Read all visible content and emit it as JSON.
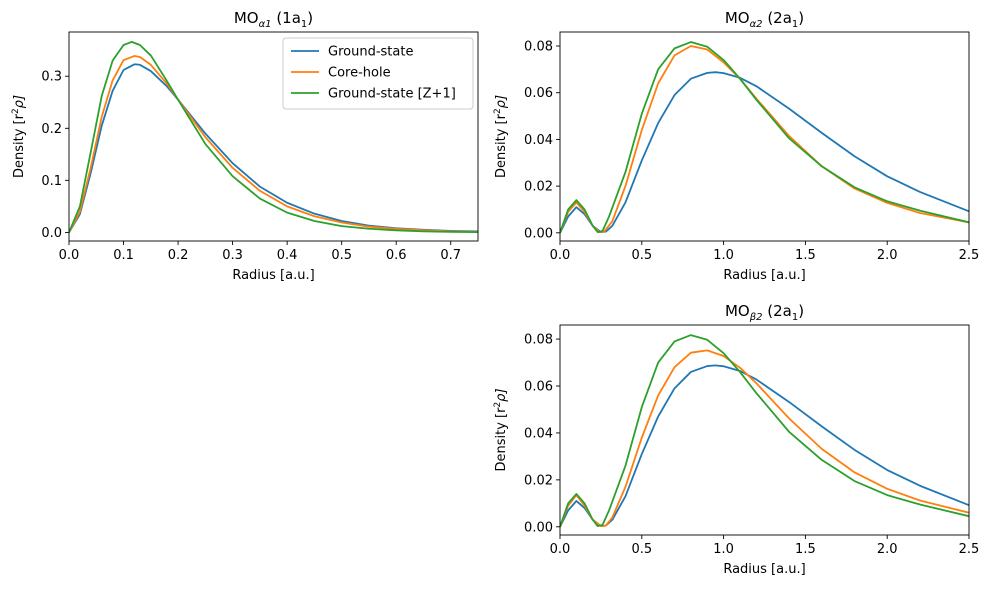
{
  "chart_data": [
    {
      "type": "line",
      "title_main": "MO",
      "title_sub": "α1",
      "title_suffix": " (1a",
      "title_suffix_sub": "1",
      "title_end": ")",
      "xlabel": "Radius [a.u.]",
      "ylabel_main": "Density [r",
      "ylabel_sup": "2",
      "ylabel_end": "ρ]",
      "xlim": [
        0,
        0.75
      ],
      "ylim": [
        -0.0165,
        0.385
      ],
      "xticks": [
        0.0,
        0.1,
        0.2,
        0.3,
        0.4,
        0.5,
        0.6,
        0.7
      ],
      "xtick_labels": [
        "0.0",
        "0.1",
        "0.2",
        "0.3",
        "0.4",
        "0.5",
        "0.6",
        "0.7"
      ],
      "yticks": [
        0.0,
        0.1,
        0.2,
        0.3
      ],
      "ytick_labels": [
        "0.0",
        "0.1",
        "0.2",
        "0.3"
      ],
      "legend": "top-right",
      "series": [
        {
          "name": "Ground-state",
          "color": "#1f77b4",
          "x": [
            0,
            0.02,
            0.04,
            0.06,
            0.08,
            0.1,
            0.12,
            0.13,
            0.15,
            0.18,
            0.2,
            0.25,
            0.3,
            0.35,
            0.4,
            0.45,
            0.5,
            0.55,
            0.6,
            0.65,
            0.7,
            0.75
          ],
          "values": [
            0,
            0.035,
            0.115,
            0.205,
            0.272,
            0.312,
            0.323,
            0.322,
            0.31,
            0.28,
            0.255,
            0.19,
            0.133,
            0.088,
            0.057,
            0.036,
            0.022,
            0.013,
            0.008,
            0.005,
            0.003,
            0.002
          ]
        },
        {
          "name": "Core-hole",
          "color": "#ff7f0e",
          "x": [
            0,
            0.02,
            0.04,
            0.06,
            0.08,
            0.1,
            0.12,
            0.13,
            0.15,
            0.18,
            0.2,
            0.25,
            0.3,
            0.35,
            0.4,
            0.45,
            0.5,
            0.55,
            0.6,
            0.65,
            0.7,
            0.75
          ],
          "values": [
            0,
            0.04,
            0.125,
            0.222,
            0.292,
            0.331,
            0.339,
            0.337,
            0.322,
            0.285,
            0.255,
            0.183,
            0.124,
            0.08,
            0.05,
            0.031,
            0.019,
            0.011,
            0.007,
            0.004,
            0.002,
            0.001
          ]
        },
        {
          "name": "Ground-state [Z+1]",
          "color": "#2ca02c",
          "x": [
            0,
            0.02,
            0.04,
            0.06,
            0.08,
            0.1,
            0.115,
            0.13,
            0.15,
            0.18,
            0.2,
            0.25,
            0.3,
            0.35,
            0.4,
            0.45,
            0.5,
            0.55,
            0.6,
            0.65,
            0.7,
            0.75
          ],
          "values": [
            0,
            0.05,
            0.155,
            0.262,
            0.33,
            0.36,
            0.366,
            0.36,
            0.34,
            0.29,
            0.255,
            0.17,
            0.108,
            0.065,
            0.038,
            0.022,
            0.012,
            0.007,
            0.004,
            0.002,
            0.001,
            0.0005
          ]
        }
      ]
    },
    {
      "type": "line",
      "title_main": "MO",
      "title_sub": "α2",
      "title_suffix": " (2a",
      "title_suffix_sub": "1",
      "title_end": ")",
      "xlabel": "Radius [a.u.]",
      "ylabel_main": "Density [r",
      "ylabel_sup": "2",
      "ylabel_end": "ρ]",
      "xlim": [
        0,
        2.5
      ],
      "ylim": [
        -0.0035,
        0.086
      ],
      "xticks": [
        0.0,
        0.5,
        1.0,
        1.5,
        2.0,
        2.5
      ],
      "xtick_labels": [
        "0.0",
        "0.5",
        "1.0",
        "1.5",
        "2.0",
        "2.5"
      ],
      "yticks": [
        0.0,
        0.02,
        0.04,
        0.06,
        0.08
      ],
      "ytick_labels": [
        "0.00",
        "0.02",
        "0.04",
        "0.06",
        "0.08"
      ],
      "legend": "none",
      "series": [
        {
          "name": "Ground-state",
          "color": "#1f77b4",
          "x": [
            0,
            0.05,
            0.1,
            0.15,
            0.2,
            0.25,
            0.28,
            0.32,
            0.4,
            0.5,
            0.6,
            0.7,
            0.8,
            0.9,
            0.95,
            1.0,
            1.1,
            1.2,
            1.4,
            1.6,
            1.8,
            2.0,
            2.2,
            2.5
          ],
          "values": [
            0,
            0.007,
            0.011,
            0.008,
            0.003,
            0.0003,
            0.0005,
            0.003,
            0.013,
            0.031,
            0.047,
            0.059,
            0.066,
            0.0685,
            0.0688,
            0.0684,
            0.0664,
            0.0628,
            0.0532,
            0.0428,
            0.0328,
            0.0242,
            0.0175,
            0.0092
          ]
        },
        {
          "name": "Core-hole",
          "color": "#ff7f0e",
          "x": [
            0,
            0.05,
            0.1,
            0.15,
            0.2,
            0.24,
            0.27,
            0.32,
            0.4,
            0.5,
            0.6,
            0.7,
            0.8,
            0.9,
            1.0,
            1.1,
            1.2,
            1.4,
            1.6,
            1.8,
            2.0,
            2.2,
            2.5
          ],
          "values": [
            0,
            0.009,
            0.013,
            0.009,
            0.003,
            0.0003,
            0.0005,
            0.005,
            0.02,
            0.044,
            0.064,
            0.076,
            0.08,
            0.0785,
            0.073,
            0.066,
            0.0575,
            0.0415,
            0.0285,
            0.019,
            0.0128,
            0.0085,
            0.0045
          ]
        },
        {
          "name": "Ground-state [Z+1]",
          "color": "#2ca02c",
          "x": [
            0,
            0.05,
            0.1,
            0.15,
            0.2,
            0.23,
            0.26,
            0.3,
            0.4,
            0.5,
            0.6,
            0.7,
            0.8,
            0.9,
            1.0,
            1.1,
            1.2,
            1.4,
            1.6,
            1.8,
            2.0,
            2.2,
            2.5
          ],
          "values": [
            0,
            0.01,
            0.014,
            0.01,
            0.003,
            0.0003,
            0.0008,
            0.007,
            0.026,
            0.051,
            0.07,
            0.079,
            0.0817,
            0.0797,
            0.074,
            0.066,
            0.057,
            0.0405,
            0.0285,
            0.0195,
            0.0135,
            0.0095,
            0.0045
          ]
        }
      ]
    },
    {
      "type": "line",
      "title_main": "MO",
      "title_sub": "β2",
      "title_suffix": " (2a",
      "title_suffix_sub": "1",
      "title_end": ")",
      "xlabel": "Radius [a.u.]",
      "ylabel_main": "Density [r",
      "ylabel_sup": "2",
      "ylabel_end": "ρ]",
      "xlim": [
        0,
        2.5
      ],
      "ylim": [
        -0.0035,
        0.086
      ],
      "xticks": [
        0.0,
        0.5,
        1.0,
        1.5,
        2.0,
        2.5
      ],
      "xtick_labels": [
        "0.0",
        "0.5",
        "1.0",
        "1.5",
        "2.0",
        "2.5"
      ],
      "yticks": [
        0.0,
        0.02,
        0.04,
        0.06,
        0.08
      ],
      "ytick_labels": [
        "0.00",
        "0.02",
        "0.04",
        "0.06",
        "0.08"
      ],
      "legend": "none",
      "series": [
        {
          "name": "Ground-state",
          "color": "#1f77b4",
          "x": [
            0,
            0.05,
            0.1,
            0.15,
            0.2,
            0.25,
            0.28,
            0.32,
            0.4,
            0.5,
            0.6,
            0.7,
            0.8,
            0.9,
            0.95,
            1.0,
            1.1,
            1.2,
            1.4,
            1.6,
            1.8,
            2.0,
            2.2,
            2.5
          ],
          "values": [
            0,
            0.007,
            0.011,
            0.008,
            0.003,
            0.0003,
            0.0005,
            0.003,
            0.013,
            0.031,
            0.047,
            0.059,
            0.066,
            0.0685,
            0.0688,
            0.0684,
            0.0664,
            0.0628,
            0.0532,
            0.0428,
            0.0328,
            0.0242,
            0.0175,
            0.0092
          ]
        },
        {
          "name": "Core-hole",
          "color": "#ff7f0e",
          "x": [
            0,
            0.05,
            0.1,
            0.15,
            0.2,
            0.25,
            0.28,
            0.32,
            0.4,
            0.5,
            0.6,
            0.7,
            0.8,
            0.9,
            1.0,
            1.1,
            1.2,
            1.4,
            1.6,
            1.8,
            2.0,
            2.2,
            2.5
          ],
          "values": [
            0,
            0.009,
            0.0135,
            0.009,
            0.003,
            0.0003,
            0.0005,
            0.004,
            0.017,
            0.038,
            0.056,
            0.068,
            0.0742,
            0.0752,
            0.0728,
            0.0678,
            0.0612,
            0.0462,
            0.0332,
            0.0232,
            0.0162,
            0.0112,
            0.006
          ]
        },
        {
          "name": "Ground-state [Z+1]",
          "color": "#2ca02c",
          "x": [
            0,
            0.05,
            0.1,
            0.15,
            0.2,
            0.23,
            0.26,
            0.3,
            0.4,
            0.5,
            0.6,
            0.7,
            0.8,
            0.9,
            1.0,
            1.1,
            1.2,
            1.4,
            1.6,
            1.8,
            2.0,
            2.2,
            2.5
          ],
          "values": [
            0,
            0.01,
            0.014,
            0.01,
            0.003,
            0.0003,
            0.0008,
            0.007,
            0.026,
            0.051,
            0.07,
            0.079,
            0.0817,
            0.0797,
            0.074,
            0.066,
            0.057,
            0.0405,
            0.0285,
            0.0195,
            0.0135,
            0.0095,
            0.0045
          ]
        }
      ]
    }
  ]
}
